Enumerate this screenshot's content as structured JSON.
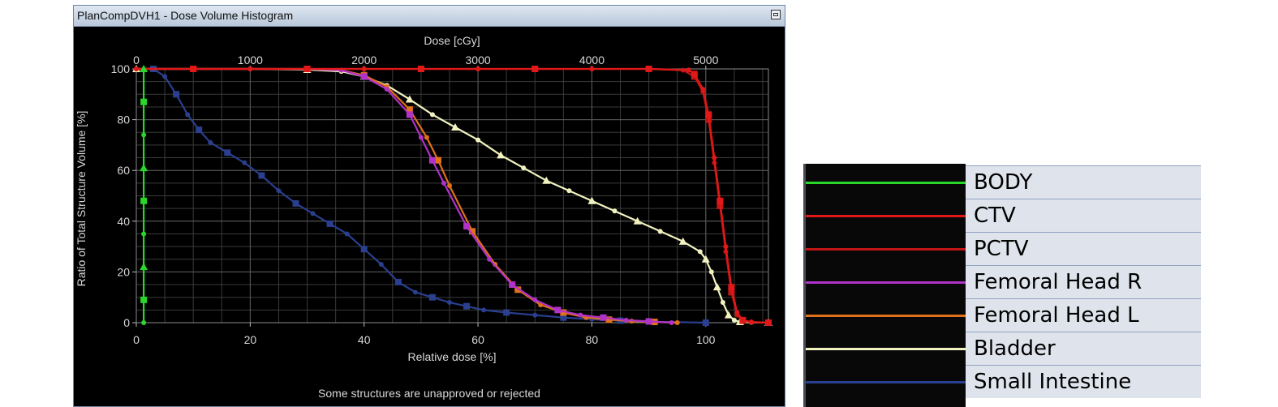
{
  "window": {
    "title": "PlanCompDVH1 - Dose Volume Histogram"
  },
  "warning_text": "Some structures are unapproved or rejected",
  "legend": [
    {
      "label": "BODY",
      "color": "#2bd62b"
    },
    {
      "label": "CTV",
      "color": "#e01818"
    },
    {
      "label": "PCTV",
      "color": "#c21515"
    },
    {
      "label": "Femoral Head R",
      "color": "#b032c8"
    },
    {
      "label": "Femoral Head L",
      "color": "#e0701a"
    },
    {
      "label": "Bladder",
      "color": "#f2f2c0"
    },
    {
      "label": "Small Intestine",
      "color": "#2a3f8f"
    }
  ],
  "chart_data": {
    "type": "line",
    "title": "",
    "xlabel": "Relative dose [%]",
    "x2label": "Dose [cGy]",
    "ylabel": "Ratio of Total Structure Volume [%]",
    "xlim": [
      0,
      111
    ],
    "ylim": [
      0,
      100
    ],
    "x2lim": [
      0,
      5550
    ],
    "xticks": [
      0,
      20,
      40,
      60,
      80,
      100
    ],
    "x2ticks": [
      0,
      1000,
      2000,
      3000,
      4000,
      5000
    ],
    "yticks": [
      0,
      20,
      40,
      60,
      80,
      100
    ],
    "grid": true,
    "series": [
      {
        "name": "BODY",
        "color": "#2bd62b",
        "marker": "mixed",
        "x": [
          1.3,
          1.3,
          1.3,
          1.3,
          1.3,
          1.3,
          1.3,
          1.3,
          1.3
        ],
        "y": [
          100,
          87,
          74,
          61,
          48,
          35,
          22,
          9,
          0
        ]
      },
      {
        "name": "CTV",
        "color": "#e01818",
        "marker": "square",
        "x": [
          0,
          10,
          20,
          30,
          40,
          50,
          60,
          70,
          80,
          90,
          97,
          98,
          99.5,
          100.5,
          101.5,
          102.5,
          103.5,
          104.5,
          105.5,
          106.5,
          108,
          111
        ],
        "y": [
          100,
          100,
          100,
          100,
          100,
          100,
          100,
          100,
          100,
          100,
          99.6,
          98,
          92,
          82,
          65,
          48,
          30,
          14,
          4,
          1,
          0.3,
          0
        ]
      },
      {
        "name": "PCTV",
        "color": "#c21515",
        "marker": "square",
        "x": [
          0,
          10,
          20,
          30,
          40,
          50,
          60,
          70,
          80,
          90,
          96,
          98,
          99.5,
          100.5,
          101.5,
          102.5,
          103.5,
          104.5,
          105.5,
          106.5,
          108,
          111
        ],
        "y": [
          100,
          100,
          100,
          100,
          100,
          100,
          100,
          100,
          100,
          100,
          99.5,
          97,
          91,
          80,
          63,
          46,
          28,
          12,
          3,
          0.8,
          0.2,
          0
        ]
      },
      {
        "name": "Femoral Head R",
        "color": "#b032c8",
        "marker": "square",
        "x": [
          0,
          30,
          36,
          40,
          44,
          48,
          50,
          52,
          54,
          58,
          62,
          66,
          70,
          74,
          78,
          82,
          86,
          90,
          94
        ],
        "y": [
          100,
          100,
          99.5,
          97,
          92,
          82,
          73,
          64,
          55,
          38,
          25,
          15,
          9,
          5,
          3,
          2,
          1,
          0.5,
          0
        ]
      },
      {
        "name": "Femoral Head L",
        "color": "#e0701a",
        "marker": "square",
        "x": [
          0,
          30,
          36,
          40,
          44,
          48,
          51,
          53,
          55,
          59,
          63,
          67,
          71,
          75,
          79,
          83,
          87,
          91,
          95
        ],
        "y": [
          100,
          100,
          99.5,
          97.5,
          93,
          84,
          73,
          64,
          54,
          36,
          23,
          13,
          7,
          4,
          2,
          1.2,
          0.6,
          0.3,
          0
        ]
      },
      {
        "name": "Bladder",
        "color": "#f2f2c0",
        "marker": "circle",
        "x": [
          0,
          20,
          30,
          36,
          40,
          44,
          48,
          52,
          56,
          60,
          64,
          68,
          72,
          76,
          80,
          84,
          88,
          92,
          96,
          99,
          100,
          101,
          102,
          103,
          104,
          105,
          106,
          108,
          111
        ],
        "y": [
          100,
          100,
          99.7,
          99,
          97,
          93.5,
          88,
          82,
          77,
          72,
          66,
          61,
          56,
          52,
          48,
          44,
          40,
          36,
          32,
          28,
          25,
          20,
          14,
          8,
          3,
          1,
          0.3,
          0.1,
          0
        ]
      },
      {
        "name": "Small Intestine",
        "color": "#2a3f8f",
        "marker": "square",
        "x": [
          0,
          3,
          5,
          7,
          9,
          11,
          13,
          16,
          19,
          22,
          25,
          28,
          31,
          34,
          37,
          40,
          43,
          46,
          49,
          52,
          55,
          58,
          61,
          65,
          70,
          75,
          80,
          85,
          90,
          100
        ],
        "y": [
          100,
          100,
          97,
          90,
          82,
          76,
          71,
          67,
          63,
          58,
          52,
          47,
          43,
          39,
          35,
          29,
          23,
          16,
          12,
          10,
          8,
          6.5,
          5,
          4,
          3,
          2,
          1.3,
          0.8,
          0.4,
          0
        ]
      }
    ]
  }
}
